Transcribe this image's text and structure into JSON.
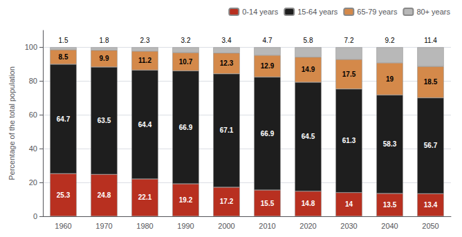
{
  "chart_data": {
    "type": "bar",
    "stacked": true,
    "ylabel": "Percentage of the total population",
    "categories": [
      "1960",
      "1970",
      "1980",
      "1990",
      "2000",
      "2010",
      "2020",
      "2030",
      "2040",
      "2050"
    ],
    "series": [
      {
        "name": "0-14 years",
        "color": "#b83020",
        "values": [
          25.3,
          24.8,
          22.1,
          19.2,
          17.2,
          15.5,
          14.8,
          14.0,
          13.5,
          13.4
        ]
      },
      {
        "name": "15-64 years",
        "color": "#1e1e1e",
        "values": [
          64.7,
          63.5,
          64.4,
          66.9,
          67.1,
          66.9,
          64.5,
          61.3,
          58.3,
          56.7
        ]
      },
      {
        "name": "65-79 years",
        "color": "#d4894a",
        "values": [
          8.5,
          9.9,
          11.2,
          10.7,
          12.3,
          12.9,
          14.9,
          17.5,
          19.0,
          18.5
        ]
      },
      {
        "name": "80+ years",
        "color": "#b8b8b8",
        "values": [
          1.5,
          1.8,
          2.3,
          3.2,
          3.4,
          4.7,
          5.8,
          7.2,
          9.2,
          11.4
        ]
      }
    ],
    "ylim": [
      0,
      110
    ],
    "yticks": [
      0,
      20,
      40,
      60,
      80,
      100
    ],
    "grid": true,
    "legend": "upper right",
    "data_labels": true
  }
}
